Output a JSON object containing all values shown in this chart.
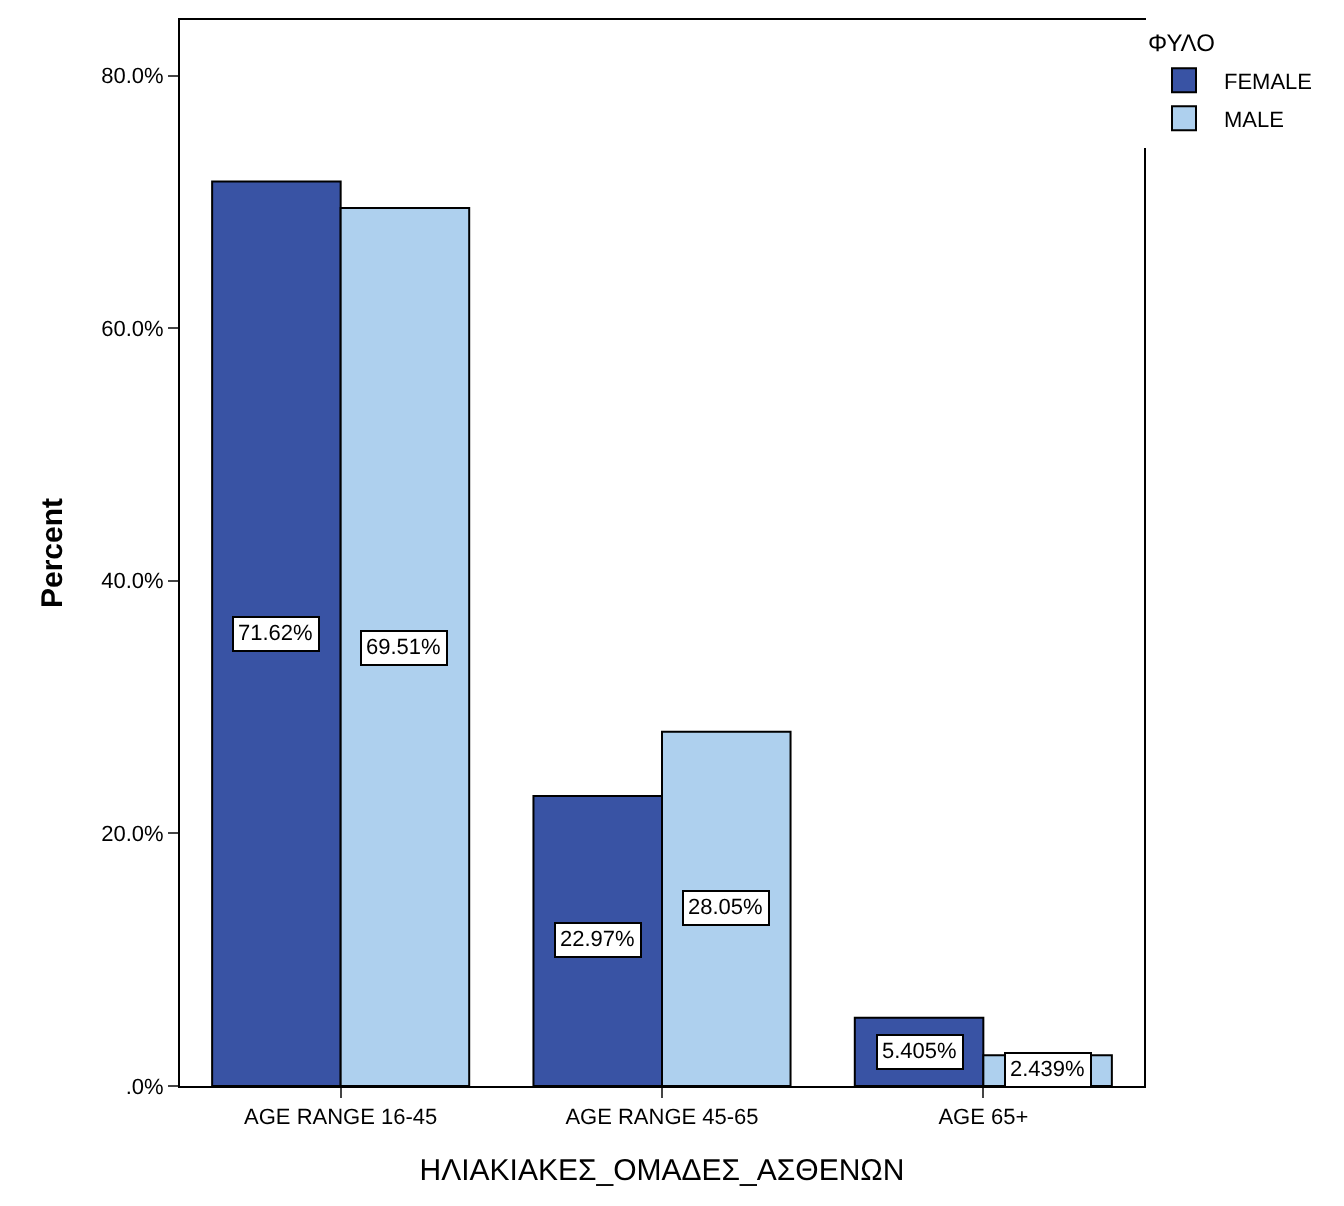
{
  "chart_data": {
    "type": "bar",
    "xlabel": "ΗΛΙΑΚΙΑΚΕΣ_ΟΜΑΔΕΣ_ΑΣΘΕΝΩΝ",
    "ylabel": "Percent",
    "legend_title": "ΦΥΛΟ",
    "categories": [
      "AGE RANGE 16-45",
      "AGE RANGE 45-65",
      "AGE 65+"
    ],
    "series": [
      {
        "name": "FEMALE",
        "color": "#3953a4",
        "values": [
          71.62,
          22.97,
          5.405
        ],
        "value_labels": [
          "71.62%",
          "22.97%",
          "5.405%"
        ]
      },
      {
        "name": "MALE",
        "color": "#aed0ee",
        "values": [
          69.51,
          28.05,
          2.439
        ],
        "value_labels": [
          "69.51%",
          "28.05%",
          "2.439%"
        ]
      }
    ],
    "ylim": [
      0,
      84.4
    ],
    "yticks": [
      {
        "value": 0,
        "label": ".0%"
      },
      {
        "value": 20,
        "label": "20.0%"
      },
      {
        "value": 40,
        "label": "40.0%"
      },
      {
        "value": 60,
        "label": "60.0%"
      },
      {
        "value": 80,
        "label": "80.0%"
      }
    ],
    "grid": false,
    "legend": "top right"
  }
}
